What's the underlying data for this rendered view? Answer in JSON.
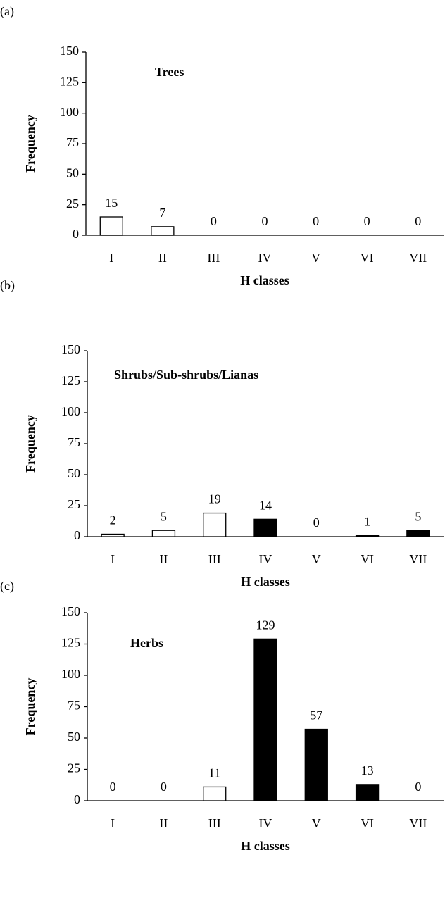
{
  "chart_data": [
    {
      "type": "bar",
      "panel_label": "(a)",
      "annotation": "Trees",
      "x_label": "H classes",
      "y_label": "Frequency",
      "categories": [
        "I",
        "II",
        "III",
        "IV",
        "V",
        "VI",
        "VII"
      ],
      "values": [
        15,
        7,
        0,
        0,
        0,
        0,
        0
      ],
      "colors": [
        "#ffffff",
        "#ffffff",
        "#ffffff",
        "#000000",
        "#000000",
        "#000000",
        "#000000"
      ],
      "ylim": [
        0,
        150
      ],
      "yticks": [
        0,
        25,
        50,
        75,
        100,
        125,
        150
      ]
    },
    {
      "type": "bar",
      "panel_label": "(b)",
      "annotation": "Shrubs/Sub-shrubs/Lianas",
      "x_label": "H classes",
      "y_label": "Frequency",
      "categories": [
        "I",
        "II",
        "III",
        "IV",
        "V",
        "VI",
        "VII"
      ],
      "values": [
        2,
        5,
        19,
        14,
        0,
        1,
        5
      ],
      "colors": [
        "#ffffff",
        "#ffffff",
        "#ffffff",
        "#000000",
        "#000000",
        "#000000",
        "#000000"
      ],
      "ylim": [
        0,
        150
      ],
      "yticks": [
        0,
        25,
        50,
        75,
        100,
        125,
        150
      ]
    },
    {
      "type": "bar",
      "panel_label": "(c)",
      "annotation": "Herbs",
      "x_label": "H classes",
      "y_label": "Frequency",
      "categories": [
        "I",
        "II",
        "III",
        "IV",
        "V",
        "VI",
        "VII"
      ],
      "values": [
        0,
        0,
        11,
        129,
        57,
        13,
        0
      ],
      "colors": [
        "#ffffff",
        "#ffffff",
        "#ffffff",
        "#000000",
        "#000000",
        "#000000",
        "#000000"
      ],
      "ylim": [
        0,
        150
      ],
      "yticks": [
        0,
        25,
        50,
        75,
        100,
        125,
        150
      ]
    }
  ]
}
